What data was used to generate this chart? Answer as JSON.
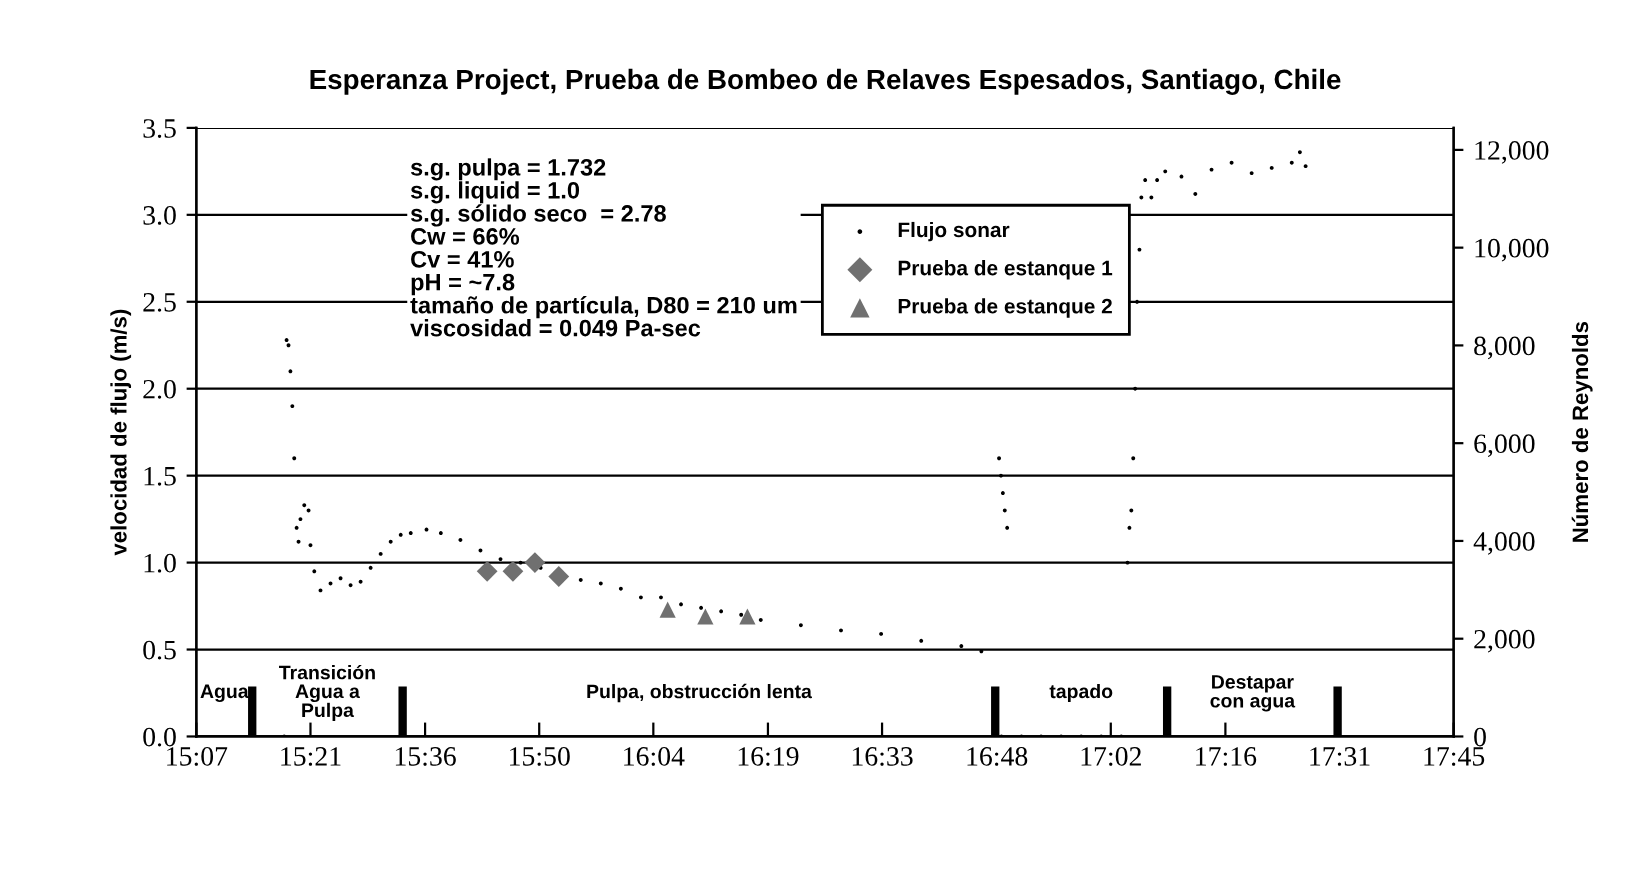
{
  "chart_data": {
    "type": "scatter",
    "title": "Esperanza Project, Prueba de Bombeo de Relaves Espesados, Santiago, Chile",
    "xlabel": null,
    "ylabel": "velocidad de flujo (m/s)",
    "y2label": "Número de Reynolds",
    "xlim": [
      15.117,
      17.75
    ],
    "xticks": [
      {
        "value": 15.117,
        "label": "15:07"
      },
      {
        "value": 15.356,
        "label": "15:21"
      },
      {
        "value": 15.596,
        "label": "15:36"
      },
      {
        "value": 15.835,
        "label": "15:50"
      },
      {
        "value": 16.074,
        "label": "16:04"
      },
      {
        "value": 16.314,
        "label": "16:19"
      },
      {
        "value": 16.553,
        "label": "16:33"
      },
      {
        "value": 16.793,
        "label": "16:48"
      },
      {
        "value": 17.032,
        "label": "17:02"
      },
      {
        "value": 17.272,
        "label": "17:16"
      },
      {
        "value": 17.511,
        "label": "17:31"
      },
      {
        "value": 17.75,
        "label": "17:45"
      }
    ],
    "ylim": [
      0,
      3.5
    ],
    "yticks": [
      {
        "value": 0,
        "label": "0.0"
      },
      0.5,
      {
        "value": 1,
        "label": "1.0"
      },
      1.5,
      {
        "value": 2,
        "label": "2.0"
      },
      2.5,
      {
        "value": 3,
        "label": "3.0"
      },
      3.5
    ],
    "y2lim": [
      0,
      12450
    ],
    "y2ticks": [
      0,
      {
        "value": 2000,
        "label": "2,000"
      },
      {
        "value": 4000,
        "label": "4,000"
      },
      {
        "value": 6000,
        "label": "6,000"
      },
      {
        "value": 8000,
        "label": "8,000"
      },
      {
        "value": 10000,
        "label": "10,000"
      },
      {
        "value": 12000,
        "label": "12,000"
      }
    ],
    "grid": "y",
    "legend": "top",
    "series": [
      {
        "name": "Flujo sonar",
        "color": "#000000",
        "marker": "circle",
        "x": [
          15.301,
          15.306,
          15.31,
          15.314,
          15.318,
          15.322,
          15.327,
          15.331,
          15.335,
          15.343,
          15.352,
          15.356,
          15.364,
          15.377,
          15.398,
          15.419,
          15.44,
          15.461,
          15.482,
          15.503,
          15.524,
          15.545,
          15.566,
          15.599,
          15.629,
          15.67,
          15.712,
          15.754,
          15.796,
          15.838,
          15.922,
          15.964,
          16.006,
          16.048,
          16.09,
          16.132,
          16.174,
          16.216,
          16.258,
          16.299,
          16.383,
          16.467,
          16.551,
          16.635,
          16.719,
          16.761,
          16.798,
          16.802,
          16.806,
          16.81,
          16.815,
          16.803,
          16.845,
          16.886,
          16.928,
          16.97,
          17.012,
          17.054,
          17.067,
          17.071,
          17.075,
          17.079,
          17.083,
          17.087,
          17.092,
          17.096,
          17.104,
          17.117,
          17.129,
          17.146,
          17.18,
          17.209,
          17.243,
          17.285,
          17.327,
          17.369,
          17.411,
          17.428,
          17.44
        ],
        "values": [
          0,
          2.28,
          2.25,
          2.1,
          1.9,
          1.6,
          1.2,
          1.12,
          1.25,
          1.33,
          1.3,
          1.1,
          0.95,
          0.84,
          0.88,
          0.91,
          0.87,
          0.89,
          0.97,
          1.05,
          1.12,
          1.16,
          1.17,
          1.19,
          1.17,
          1.13,
          1.07,
          1.02,
          1.0,
          0.97,
          0.9,
          0.88,
          0.85,
          0.8,
          0.8,
          0.76,
          0.74,
          0.72,
          0.7,
          0.67,
          0.64,
          0.61,
          0.59,
          0.55,
          0.52,
          0.49,
          1.6,
          1.5,
          1.4,
          1.3,
          1.2,
          0,
          0,
          0,
          0,
          0,
          0,
          0,
          1.0,
          1.2,
          1.3,
          1.6,
          2.0,
          2.5,
          2.8,
          3.1,
          3.2,
          3.1,
          3.2,
          3.25,
          3.22,
          3.12,
          3.26,
          3.3,
          3.24,
          3.27,
          3.3,
          3.36,
          3.28
        ]
      },
      {
        "name": "Prueba de estanque 1",
        "color": "#707070",
        "marker": "diamond",
        "x": [
          15.726,
          15.78,
          15.826,
          15.876
        ],
        "values": [
          0.95,
          0.95,
          1.0,
          0.92
        ]
      },
      {
        "name": "Prueba de estanque 2",
        "color": "#707070",
        "marker": "triangle",
        "x": [
          16.104,
          16.183,
          16.271
        ],
        "values": [
          0.73,
          0.69,
          0.69
        ]
      }
    ],
    "ref_lines": [
      {
        "axis": "x",
        "value": 15.234,
        "label": null,
        "line_style": "dashed"
      },
      {
        "axis": "x",
        "value": 15.549,
        "label": null,
        "line_style": "dashed"
      },
      {
        "axis": "x",
        "value": 16.79,
        "label": null,
        "line_style": "dashed"
      },
      {
        "axis": "x",
        "value": 17.15,
        "label": null,
        "line_style": "dashed"
      },
      {
        "axis": "x",
        "value": 17.507,
        "label": null,
        "line_style": "dashed"
      }
    ],
    "annotations": [
      "s.g. pulpa = 1.732\ns.g. liquid = 1.0\ns.g. sólido seco  = 2.78\nCw = 66%\nCv = 41%\npH = ~7.8\ntamaño de partícula, D80 = 210 um\nviscosidad = 0.049 Pa-sec",
      "Agua",
      "Transición\nAgua a\nPulpa",
      "Pulpa, obstrucción lenta",
      "tapado",
      "Destapar\ncon agua"
    ]
  }
}
